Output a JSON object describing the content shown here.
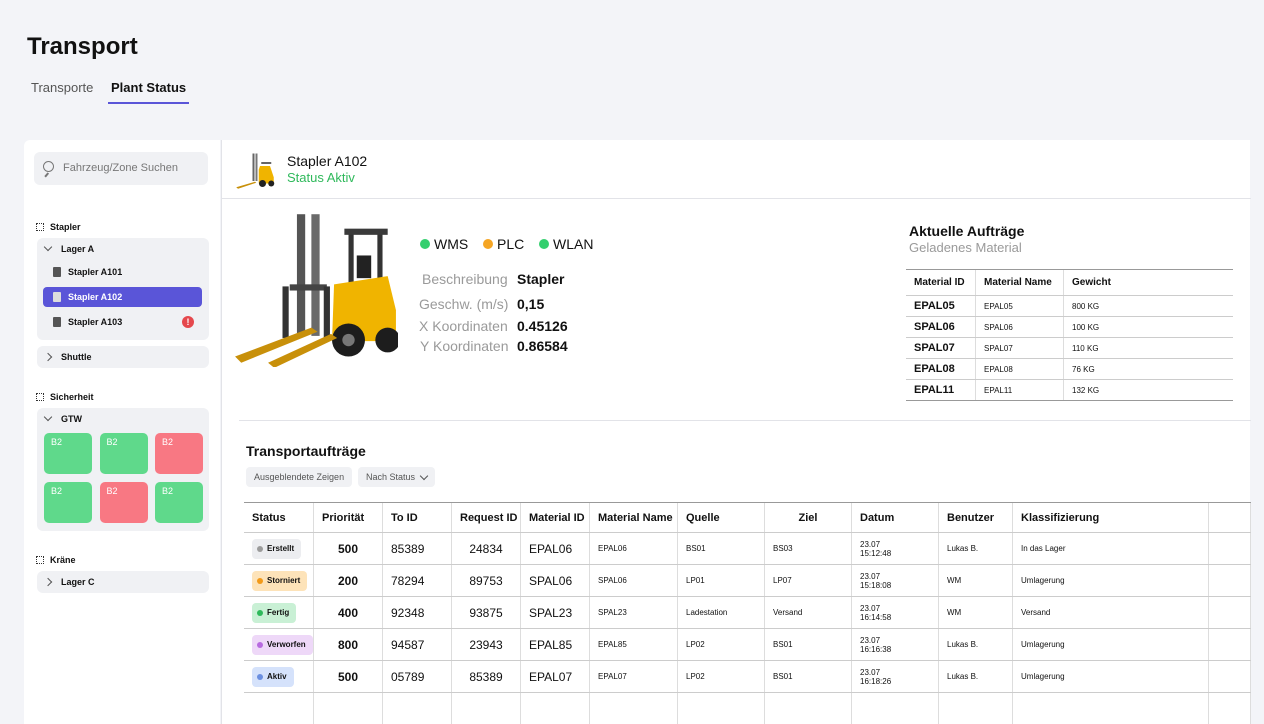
{
  "header": {
    "title": "Transport",
    "tabs": [
      "Transporte",
      "Plant Status"
    ],
    "active_tab": 1
  },
  "sidebar": {
    "search_placeholder": "Fahrzeug/Zone Suchen",
    "sections": [
      {
        "label": "Stapler",
        "groups": [
          {
            "label": "Lager A",
            "expanded": true,
            "items": [
              {
                "label": "Stapler A101"
              },
              {
                "label": "Stapler A102",
                "selected": true
              },
              {
                "label": "Stapler A103",
                "alert": "!"
              }
            ]
          },
          {
            "label": "Shuttle",
            "expanded": false
          }
        ]
      },
      {
        "label": "Sicherheit",
        "groups": [
          {
            "label": "GTW",
            "expanded": true,
            "tiles": [
              {
                "label": "B2",
                "color": "#5fd98b"
              },
              {
                "label": "B2",
                "color": "#5fd98b"
              },
              {
                "label": "B2",
                "color": "#f87883"
              },
              {
                "label": "B2",
                "color": "#5fd98b"
              },
              {
                "label": "B2",
                "color": "#f87883"
              },
              {
                "label": "B2",
                "color": "#5fd98b"
              }
            ]
          }
        ]
      },
      {
        "label": "Kräne",
        "groups": [
          {
            "label": "Lager C",
            "expanded": false
          }
        ]
      }
    ]
  },
  "detail": {
    "name": "Stapler A102",
    "status": "Status Aktiv",
    "indicators": [
      {
        "label": "WMS",
        "color": "#34cf6e"
      },
      {
        "label": "PLC",
        "color": "#f5a524"
      },
      {
        "label": "WLAN",
        "color": "#34cf6e"
      }
    ],
    "properties": [
      {
        "label": "Beschreibung",
        "value": "Stapler"
      },
      {
        "label": "Geschw. (m/s)",
        "value": "0,15"
      },
      {
        "label": "X Koordinaten",
        "value": "0.45126"
      },
      {
        "label": "Y Koordinaten",
        "value": "0.86584"
      }
    ],
    "orders": {
      "title": "Aktuelle Aufträge",
      "subtitle": "Geladenes Material",
      "columns": [
        "Material ID",
        "Material Name",
        "Gewicht"
      ],
      "rows": [
        {
          "material_id": "EPAL05",
          "material_name": "EPAL05",
          "weight": "800 KG"
        },
        {
          "material_id": "SPAL06",
          "material_name": "SPAL06",
          "weight": "100 KG"
        },
        {
          "material_id": "SPAL07",
          "material_name": "SPAL07",
          "weight": "110 KG"
        },
        {
          "material_id": "EPAL08",
          "material_name": "EPAL08",
          "weight": "76 KG"
        },
        {
          "material_id": "EPAL11",
          "material_name": "EPAL11",
          "weight": "132 KG"
        }
      ]
    }
  },
  "transport": {
    "title": "Transportaufträge",
    "buttons": [
      "Ausgeblendete Zeigen",
      "Nach Status"
    ],
    "columns": [
      "Status",
      "Priorität",
      "To ID",
      "Request ID",
      "Material ID",
      "Material Name",
      "Quelle",
      "Ziel",
      "Datum",
      "Benutzer",
      "Klassifizierung"
    ],
    "rows": [
      {
        "status": {
          "label": "Erstellt",
          "color": "#9b9b9b",
          "bg": "#ecedf0"
        },
        "priority": "500",
        "to_id": "85389",
        "request_id": "24834",
        "material_id": "EPAL06",
        "material_name": "EPAL06",
        "source": "BS01",
        "target": "BS03",
        "date": "23.07",
        "time": "15:12:48",
        "user": "Lukas B.",
        "classification": "In das Lager"
      },
      {
        "status": {
          "label": "Storniert",
          "color": "#f29a1a",
          "bg": "#fde3b9"
        },
        "priority": "200",
        "to_id": "78294",
        "request_id": "89753",
        "material_id": "SPAL06",
        "material_name": "SPAL06",
        "source": "LP01",
        "target": "LP07",
        "date": "23.07",
        "time": "15:18:08",
        "user": "WM",
        "classification": "Umlagerung"
      },
      {
        "status": {
          "label": "Fertig",
          "color": "#2fb95b",
          "bg": "#c9f0d5"
        },
        "priority": "400",
        "to_id": "92348",
        "request_id": "93875",
        "material_id": "SPAL23",
        "material_name": "SPAL23",
        "source": "Ladestation",
        "target": "Versand",
        "date": "23.07",
        "time": "16:14:58",
        "user": "WM",
        "classification": "Versand"
      },
      {
        "status": {
          "label": "Verworfen",
          "color": "#b86ae0",
          "bg": "#eed8f8"
        },
        "priority": "800",
        "to_id": "94587",
        "request_id": "23943",
        "material_id": "EPAL85",
        "material_name": "EPAL85",
        "source": "LP02",
        "target": "BS01",
        "date": "23.07",
        "time": "16:16:38",
        "user": "Lukas B.",
        "classification": "Umlagerung"
      },
      {
        "status": {
          "label": "Aktiv",
          "color": "#6b8fe0",
          "bg": "#d5e2fb"
        },
        "priority": "500",
        "to_id": "05789",
        "request_id": "85389",
        "material_id": "EPAL07",
        "material_name": "EPAL07",
        "source": "LP02",
        "target": "BS01",
        "date": "23.07",
        "time": "16:18:26",
        "user": "Lukas B.",
        "classification": "Umlagerung"
      }
    ]
  }
}
